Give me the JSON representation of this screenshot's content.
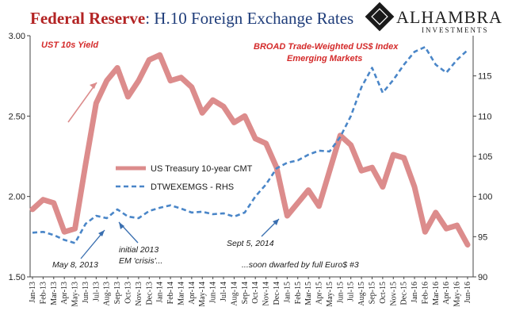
{
  "header": {
    "title_part1": "Federal Reserve",
    "title_part2": ": H.10 Foreign Exchange Rates",
    "logo_name": "ALHAMBRA",
    "logo_sub": "INVESTMENTS"
  },
  "colors": {
    "treasury": "#dc8c8c",
    "dollar": "#4a86c8",
    "annotation_red": "#d42a2a",
    "arrow_blue": "#3a6fb0",
    "title_red": "#b32424",
    "title_blue": "#1f3d7a"
  },
  "annotations": {
    "ust_label": "UST 10s Yield",
    "broad_line1": "BROAD Trade-Weighted US$ Index",
    "broad_line2": "Emerging Markets",
    "may_2013": "May 8, 2013",
    "initial_line1": "initial 2013",
    "initial_line2": "EM 'crisis'...",
    "sept_2014": "Sept 5, 2014",
    "dwarfed": "...soon dwarfed by full Euro$ #3"
  },
  "chart_data": {
    "type": "line",
    "legend_position": "center-left",
    "grid": false,
    "x": [
      "Jan-13",
      "Feb-13",
      "Mar-13",
      "Apr-13",
      "May-13",
      "Jun-13",
      "Jul-13",
      "Aug-13",
      "Sep-13",
      "Oct-13",
      "Nov-13",
      "Dec-13",
      "Jan-14",
      "Feb-14",
      "Mar-14",
      "Apr-14",
      "May-14",
      "Jun-14",
      "Jul-14",
      "Aug-14",
      "Sep-14",
      "Oct-14",
      "Nov-14",
      "Dec-14",
      "Jan-15",
      "Feb-15",
      "Mar-15",
      "Apr-15",
      "May-15",
      "Jun-15",
      "Jul-15",
      "Aug-15",
      "Sep-15",
      "Oct-15",
      "Nov-15",
      "Dec-15",
      "Jan-16",
      "Feb-16",
      "Mar-16",
      "Apr-16",
      "May-16",
      "Jun-16"
    ],
    "y_left": {
      "ylim": [
        1.5,
        3.0
      ],
      "ticks": [
        "1.50",
        "2.00",
        "2.50",
        "3.00"
      ]
    },
    "y_right": {
      "ylim": [
        90,
        120
      ],
      "ticks": [
        "90",
        "95",
        "100",
        "105",
        "110",
        "115"
      ]
    },
    "series": [
      {
        "name": "US Treasury 10-year CMT",
        "axis": "left",
        "values": [
          1.92,
          1.98,
          1.96,
          1.78,
          1.8,
          2.2,
          2.58,
          2.72,
          2.8,
          2.62,
          2.72,
          2.85,
          2.88,
          2.72,
          2.74,
          2.68,
          2.52,
          2.6,
          2.56,
          2.46,
          2.5,
          2.36,
          2.33,
          2.18,
          1.88,
          1.96,
          2.04,
          1.94,
          2.16,
          2.38,
          2.32,
          2.16,
          2.18,
          2.06,
          2.26,
          2.24,
          2.06,
          1.78,
          1.9,
          1.8,
          1.82,
          1.7
        ]
      },
      {
        "name": "DTWEXEMGS - RHS",
        "axis": "right",
        "values": [
          95.5,
          95.6,
          95.2,
          94.6,
          94.2,
          96.6,
          97.6,
          97.3,
          98.4,
          97.5,
          97.3,
          98.2,
          98.6,
          98.9,
          98.5,
          98.0,
          98.1,
          97.8,
          97.9,
          97.5,
          98.0,
          100.0,
          101.5,
          103.5,
          104.2,
          104.5,
          105.2,
          105.7,
          105.6,
          107.4,
          110.0,
          113.6,
          116.0,
          112.9,
          114.5,
          116.4,
          118.0,
          118.6,
          116.4,
          115.4,
          117.0,
          118.2
        ]
      }
    ]
  }
}
